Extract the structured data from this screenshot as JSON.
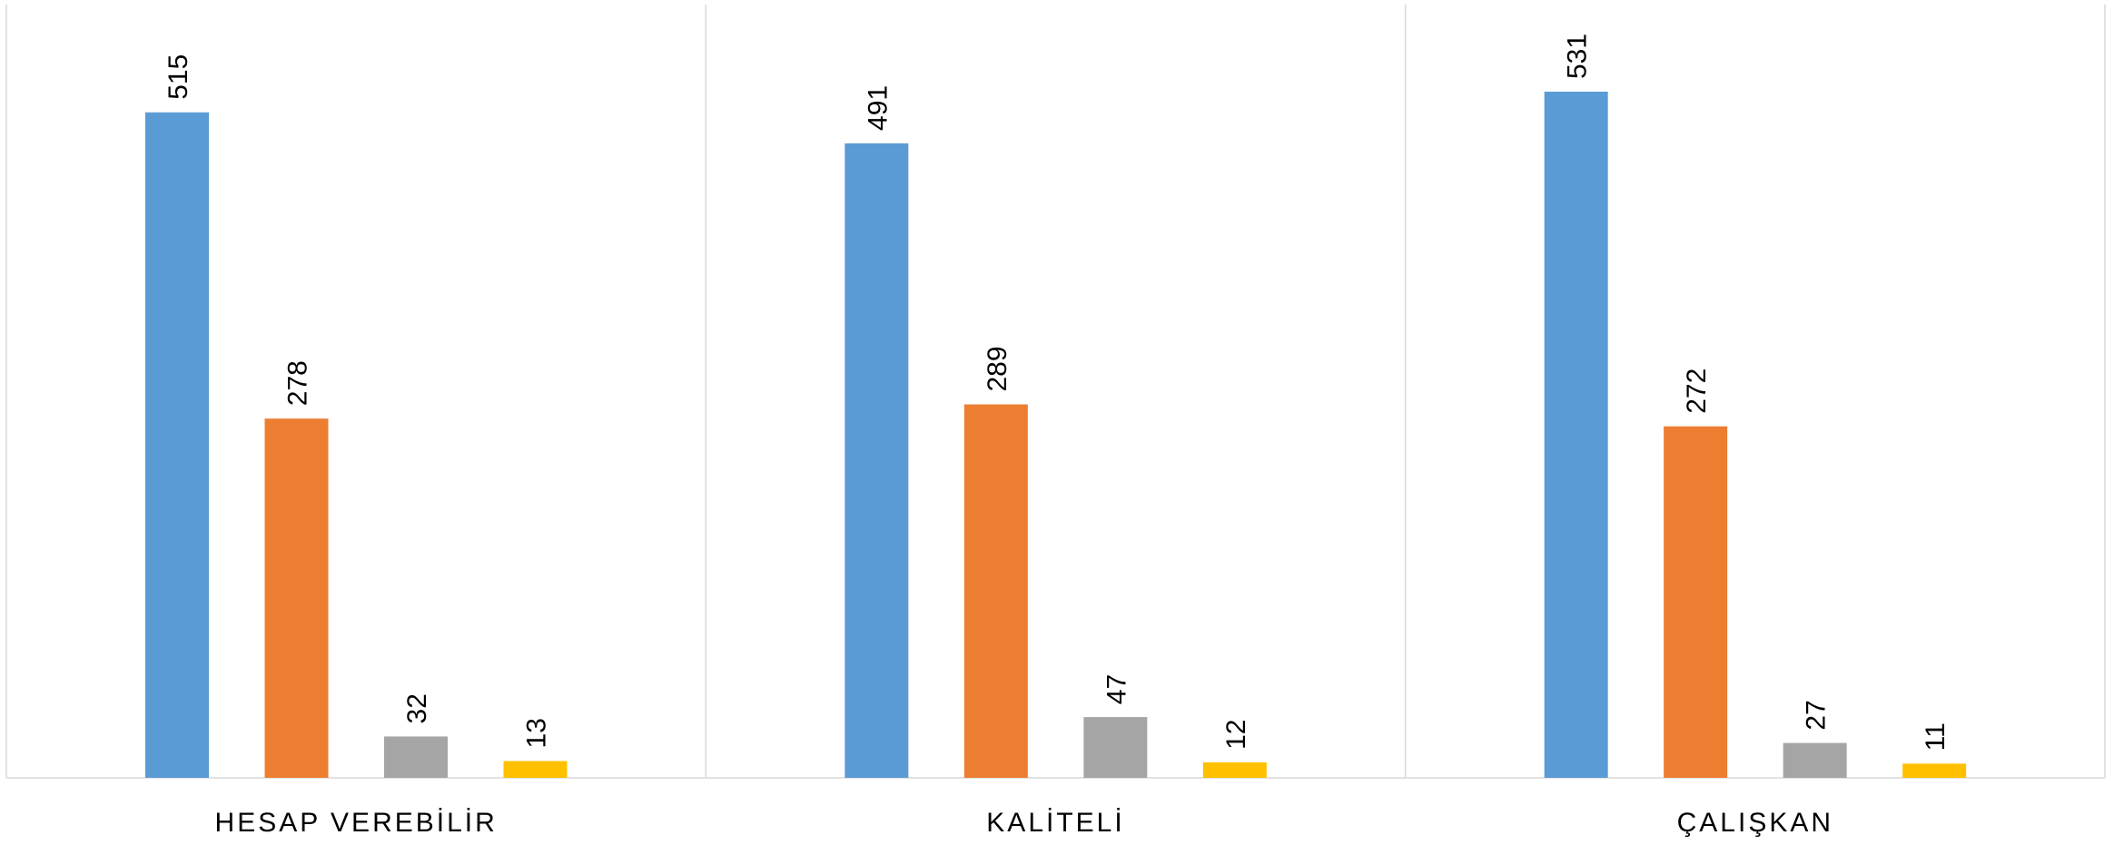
{
  "chart_data": {
    "type": "bar",
    "title": "",
    "xlabel": "",
    "ylabel": "",
    "ylim": [
      0,
      560
    ],
    "grid": false,
    "legend": "none",
    "categories": [
      "HESAP VEREBİLİR",
      "KALİTELİ",
      "ÇALIŞKAN"
    ],
    "series": [
      {
        "color": "#5B9BD5",
        "values": [
          515,
          491,
          531
        ]
      },
      {
        "color": "#ED7D31",
        "values": [
          278,
          289,
          272
        ]
      },
      {
        "color": "#A5A5A5",
        "values": [
          32,
          47,
          27
        ]
      },
      {
        "color": "#FFC000",
        "values": [
          13,
          12,
          11
        ]
      }
    ]
  }
}
